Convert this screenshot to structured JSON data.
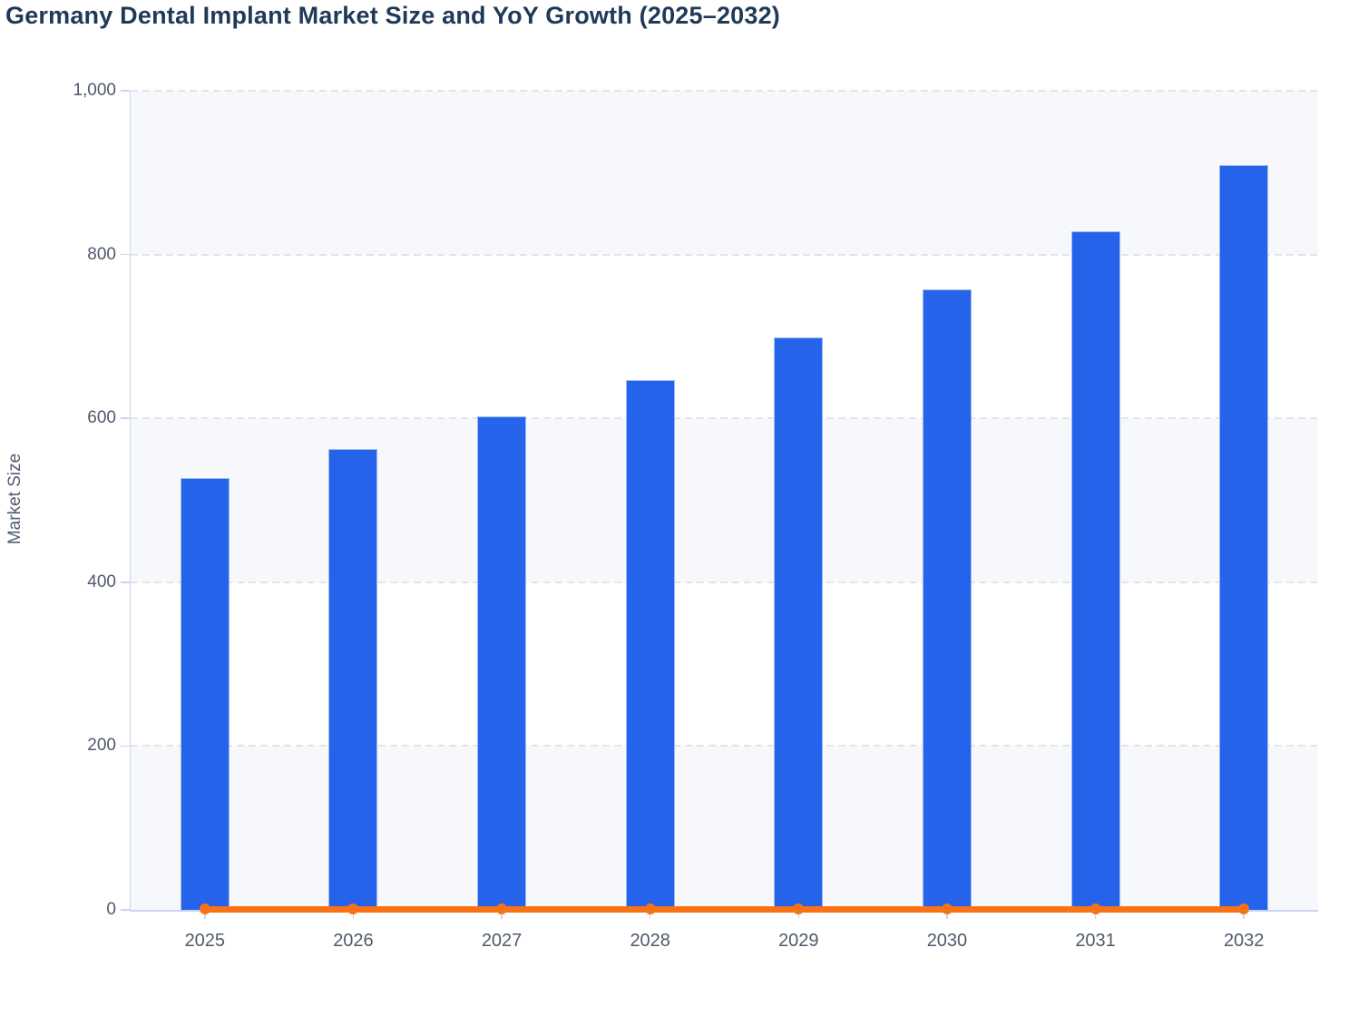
{
  "chart_data": {
    "type": "bar",
    "title": "Germany Dental Implant Market Size and YoY Growth (2025–2032)",
    "ylabel": "Market Size",
    "xlabel": "",
    "categories": [
      "2025",
      "2026",
      "2027",
      "2028",
      "2029",
      "2030",
      "2031",
      "2032"
    ],
    "series": [
      {
        "name": "Market Size",
        "type": "bar",
        "values": [
          527,
          563,
          602,
          647,
          699,
          758,
          828,
          909
        ]
      },
      {
        "name": "YoY Growth",
        "type": "line",
        "values_approx_pct": [
          6.5,
          6.8,
          6.9,
          7.5,
          8.0,
          8.4,
          9.2,
          9.8
        ],
        "note": "plotted on the same 0–1000 axis, so the line renders flat at ~0 with a round marker at every year"
      }
    ],
    "ylim": [
      0,
      1000
    ],
    "y_tick_values": [
      0,
      200,
      400,
      600,
      800,
      1000
    ],
    "y_tick_labels": [
      "0",
      "200",
      "400",
      "600",
      "800",
      "1,000"
    ],
    "grid": "horizontal dashed",
    "plot_bands": "alternating fill between gridlines starting gray at 0–200",
    "legend_position": "none"
  },
  "colors": {
    "title": "#1f3a57",
    "bar": "#2563eb",
    "bar_border": "#9db9f2",
    "line": "#f97316",
    "axis": "#cbd4f0",
    "grid": "#e4e4e8",
    "band": "#f7f8fb",
    "tick_label": "#4e5a6c",
    "axis_title": "#535e70",
    "background": "#ffffff"
  }
}
